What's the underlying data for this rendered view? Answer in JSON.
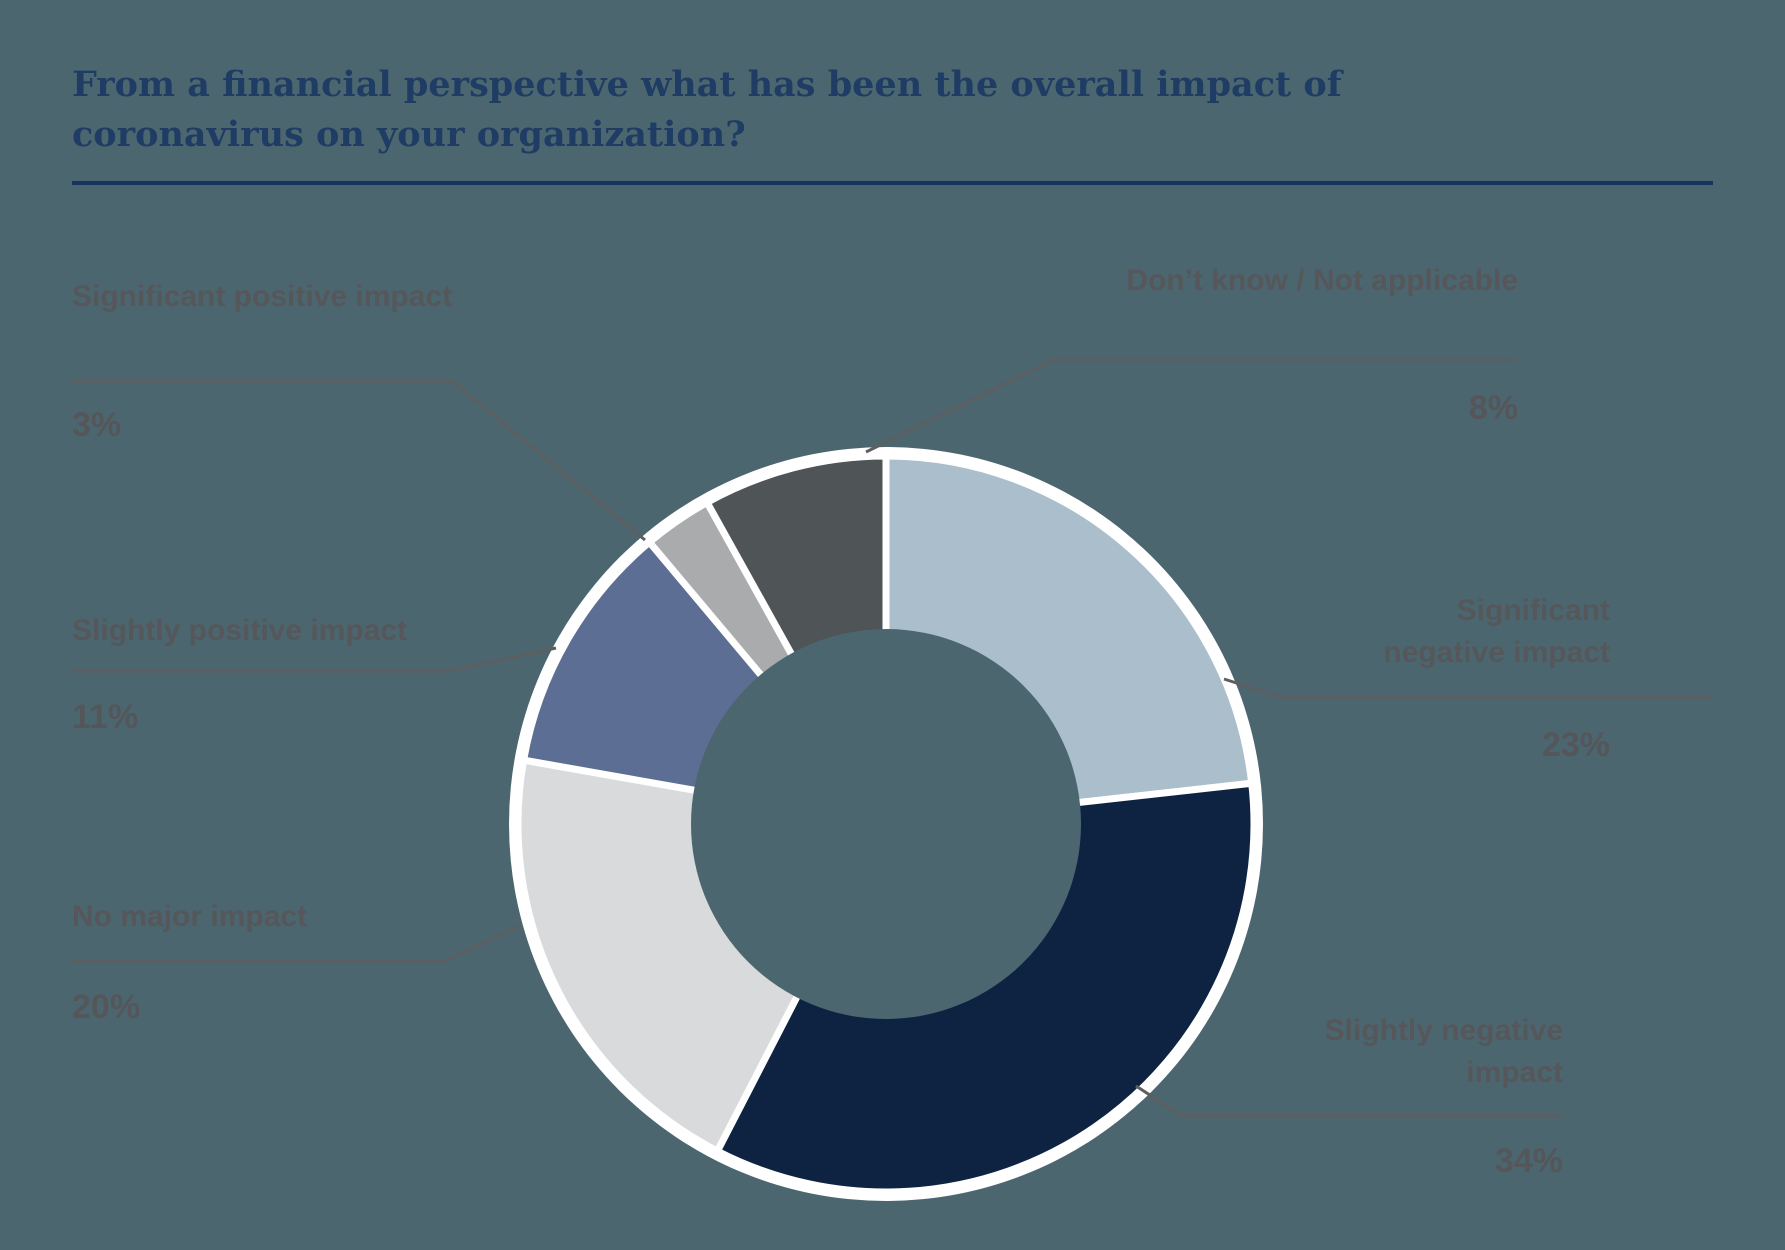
{
  "background_color": "#4c6670",
  "title": {
    "text": "From a financial perspective  what has been the overall impact of\ncoronavirus on your organization?",
    "color": "#1e3c64",
    "rule_color": "#16335c"
  },
  "chart_data": {
    "type": "pie",
    "subtype": "donut",
    "title": "From a financial perspective  what has been the overall impact of coronavirus on your organization?",
    "legend_position": "callout-labels",
    "start_angle_deg": 0,
    "clockwise": true,
    "hole_ratio": 0.53,
    "ring_color": "#ffffff",
    "callout_line_color": "#5c5e60",
    "label_color": "#55575a",
    "pct_color": "#54565a",
    "slices": [
      {
        "id": "significant-negative",
        "label": "Significant\nnegative impact",
        "value": 23,
        "pct_label": "23%",
        "color": "#aabecc",
        "side": "right"
      },
      {
        "id": "slightly-negative",
        "label": "Slightly negative\nimpact",
        "value": 34,
        "pct_label": "34%",
        "color": "#0e2342",
        "side": "right"
      },
      {
        "id": "no-major",
        "label": "No major impact",
        "value": 20,
        "pct_label": "20%",
        "color": "#d9dadb",
        "side": "left"
      },
      {
        "id": "slightly-positive",
        "label": "Slightly positive impact",
        "value": 11,
        "pct_label": "11%",
        "color": "#5d6e94",
        "side": "left"
      },
      {
        "id": "significant-positive",
        "label": "Significant positive impact",
        "value": 3,
        "pct_label": "3%",
        "color": "#a9abad",
        "side": "left"
      },
      {
        "id": "dont-know",
        "label": "Don’t know / Not applicable",
        "value": 8,
        "pct_label": "8%",
        "color": "#4f5457",
        "side": "right"
      }
    ]
  }
}
